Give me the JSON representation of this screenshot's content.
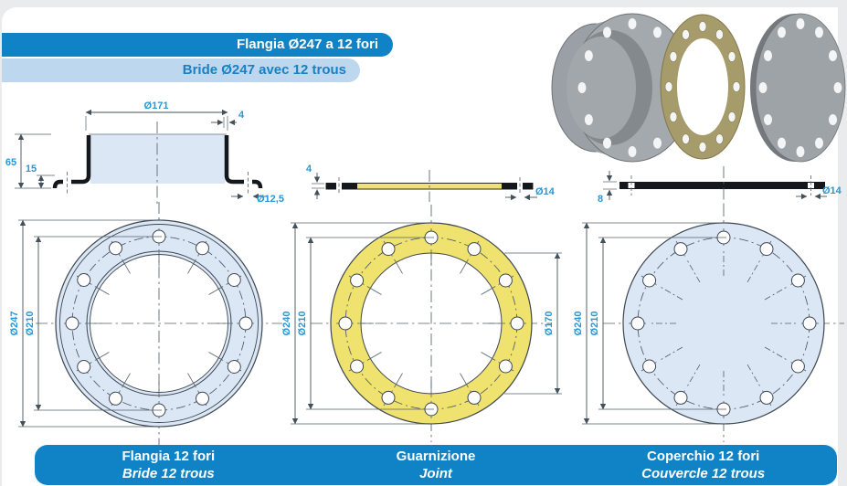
{
  "header": {
    "title_it": "Flangia Ø247 a 12 fori",
    "title_fr": "Bride Ø247 avec 12 trous"
  },
  "section_views": {
    "flange": {
      "top_diameter": "Ø171",
      "wall_thickness": "4",
      "height": "65",
      "flange_height": "15",
      "hole_diameter": "Ø12,5"
    },
    "gasket": {
      "thickness": "4",
      "hole_diameter": "Ø14"
    },
    "cover": {
      "thickness": "8",
      "hole_diameter": "Ø14"
    }
  },
  "front_views": {
    "flange": {
      "outer": "Ø247",
      "bolt_circle": "Ø210",
      "hole_count": 12
    },
    "gasket": {
      "outer": "Ø240",
      "bolt_circle": "Ø210",
      "inner": "Ø170",
      "hole_count": 12
    },
    "cover": {
      "outer": "Ø240",
      "bolt_circle": "Ø210",
      "hole_count": 12
    }
  },
  "footer": {
    "flange": {
      "it": "Flangia 12 fori",
      "fr": "Bride 12 trous"
    },
    "gasket": {
      "it": "Guarnizione",
      "fr": "Joint"
    },
    "cover": {
      "it": "Coperchio 12 fori",
      "fr": "Couvercle 12 trous"
    }
  },
  "colors": {
    "banner_blue": "#1083c6",
    "banner_light_blue": "#bdd7ee",
    "dimension_text_blue": "#2797d6",
    "part_fill_blue": "#dbe7f5",
    "gasket_yellow": "#efe26e",
    "metal_gray_3d": "#9ea3a8",
    "gasket_tan_3d": "#a69b6b"
  }
}
